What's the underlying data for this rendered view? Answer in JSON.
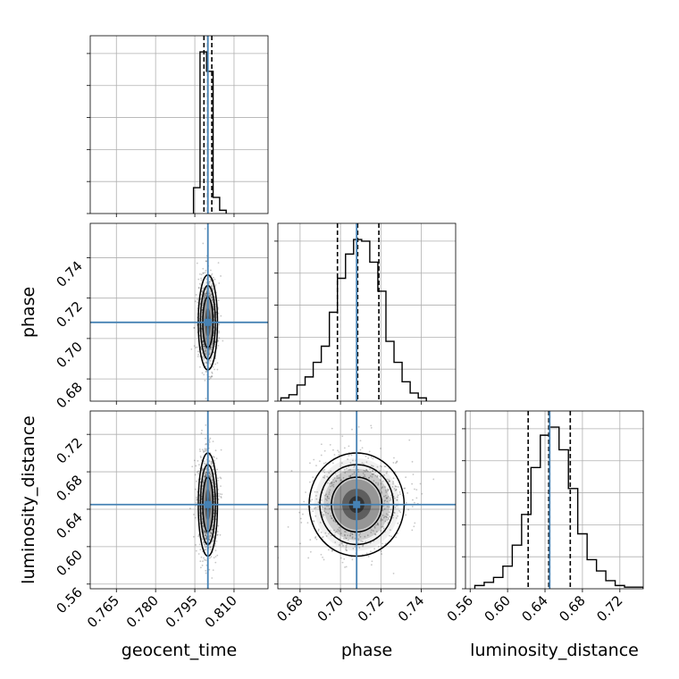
{
  "chart_data": {
    "type": "corner",
    "parameters": [
      "geocent_time",
      "phase",
      "luminosity_distance"
    ],
    "truths": {
      "geocent_time": 0.8,
      "phase": 0.708,
      "luminosity_distance": 0.645
    },
    "quantiles": {
      "geocent_time": [
        0.7985,
        0.8,
        0.8015
      ],
      "phase": [
        0.6985,
        0.7085,
        0.719
      ],
      "luminosity_distance": [
        0.622,
        0.644,
        0.667
      ]
    },
    "axes": {
      "geocent_time": {
        "range": [
          0.755,
          0.823
        ],
        "ticks": [
          0.765,
          0.78,
          0.795,
          0.81
        ],
        "tick_labels": [
          "0.765",
          "0.780",
          "0.795",
          "0.810"
        ]
      },
      "phase": {
        "range": [
          0.669,
          0.757
        ],
        "ticks": [
          0.68,
          0.7,
          0.72,
          0.74
        ],
        "tick_labels": [
          "0.68",
          "0.70",
          "0.72",
          "0.74"
        ]
      },
      "luminosity_distance": {
        "range": [
          0.555,
          0.745
        ],
        "ticks": [
          0.56,
          0.6,
          0.64,
          0.68,
          0.72
        ],
        "tick_labels": [
          "0.56",
          "0.60",
          "0.64",
          "0.68",
          "0.72"
        ]
      }
    },
    "histograms": {
      "geocent_time": {
        "edges": [
          0.7945,
          0.797,
          0.7995,
          0.802,
          0.8045,
          0.807
        ],
        "counts": [
          0.16,
          1.0,
          0.88,
          0.1,
          0.02
        ]
      },
      "phase": {
        "edges": [
          0.6705,
          0.6745,
          0.6785,
          0.6825,
          0.6865,
          0.6905,
          0.6945,
          0.6985,
          0.7025,
          0.7065,
          0.7105,
          0.7145,
          0.7185,
          0.7225,
          0.7265,
          0.7305,
          0.7345,
          0.7385,
          0.7425
        ],
        "counts": [
          0.02,
          0.04,
          0.1,
          0.15,
          0.24,
          0.34,
          0.55,
          0.76,
          0.91,
          1.0,
          0.99,
          0.86,
          0.68,
          0.37,
          0.24,
          0.12,
          0.05,
          0.02
        ]
      },
      "luminosity_distance": {
        "edges": [
          0.565,
          0.575,
          0.585,
          0.595,
          0.605,
          0.615,
          0.625,
          0.635,
          0.645,
          0.655,
          0.665,
          0.675,
          0.685,
          0.695,
          0.705,
          0.715,
          0.725,
          0.735,
          0.745
        ],
        "counts": [
          0.02,
          0.04,
          0.07,
          0.14,
          0.27,
          0.46,
          0.75,
          0.95,
          1.0,
          0.86,
          0.62,
          0.34,
          0.18,
          0.11,
          0.05,
          0.02,
          0.01,
          0.01
        ]
      }
    },
    "pairs": [
      {
        "x": "geocent_time",
        "y": "phase",
        "center": [
          0.8,
          0.708
        ],
        "sigma": [
          0.0015,
          0.0096
        ]
      },
      {
        "x": "geocent_time",
        "y": "luminosity_distance",
        "center": [
          0.8,
          0.645
        ],
        "sigma": [
          0.0015,
          0.0225
        ]
      },
      {
        "x": "phase",
        "y": "luminosity_distance",
        "center": [
          0.708,
          0.645
        ],
        "sigma": [
          0.0096,
          0.0225
        ]
      }
    ],
    "grid": true,
    "colors": {
      "truth": "#4682b4",
      "hist": "#000000",
      "quantile": "#000000",
      "contour": "#000000",
      "density": "#000000"
    }
  }
}
